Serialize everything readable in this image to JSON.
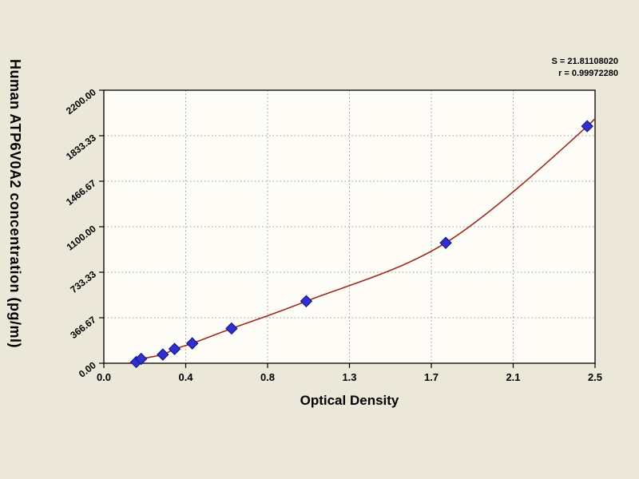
{
  "page": {
    "background": "#ebe8da"
  },
  "colors": {
    "page_bg": "#ebe8da",
    "plot_bg": "#fdfcf6",
    "grid": "#9a9a9a",
    "axis": "#000000",
    "curve": "#9c2a21",
    "marker": "#3030cf",
    "marker_edge": "#10107e"
  },
  "chart_data": {
    "type": "scatter",
    "title": "",
    "xlabel": "Optical Density",
    "ylabel": "Human ATP6V0A2 concentration (pg/ml)",
    "xlim": [
      0.0,
      2.5
    ],
    "ylim": [
      0,
      2200
    ],
    "grid": "dotted-interior",
    "legend": "none",
    "annotations": [
      "S = 21.81108020",
      "r = 0.99972280"
    ],
    "x_ticks": {
      "values": [
        0,
        0.4167,
        0.8333,
        1.25,
        1.6667,
        2.0833,
        2.5
      ],
      "labels": [
        "0.0",
        "0.4",
        "0.8",
        "1.3",
        "1.7",
        "2.1",
        "2.5"
      ]
    },
    "y_ticks": {
      "values": [
        0,
        366.67,
        733.33,
        1100,
        1466.67,
        1833.33,
        2200
      ],
      "labels": [
        "0.00",
        "366.67",
        "733.33",
        "1100.00",
        "1466.67",
        "1833.33",
        "2200.00"
      ]
    },
    "series": [
      {
        "name": "standard-points",
        "type": "scatter",
        "marker": "diamond",
        "color": "#3030cf",
        "edge_color": "#10107e",
        "points": [
          [
            0.165,
            10
          ],
          [
            0.19,
            35
          ],
          [
            0.3,
            70
          ],
          [
            0.36,
            115
          ],
          [
            0.45,
            160
          ],
          [
            0.65,
            280
          ],
          [
            1.03,
            500
          ],
          [
            1.74,
            970
          ],
          [
            2.46,
            1910
          ]
        ]
      },
      {
        "name": "fit-curve",
        "type": "line",
        "color": "#9c2a21",
        "points": [
          [
            0.12,
            0
          ],
          [
            0.165,
            10
          ],
          [
            0.19,
            35
          ],
          [
            0.3,
            70
          ],
          [
            0.36,
            115
          ],
          [
            0.45,
            160
          ],
          [
            0.65,
            280
          ],
          [
            1.03,
            500
          ],
          [
            1.74,
            970
          ],
          [
            2.46,
            1910
          ],
          [
            2.5,
            2060
          ]
        ]
      }
    ]
  }
}
